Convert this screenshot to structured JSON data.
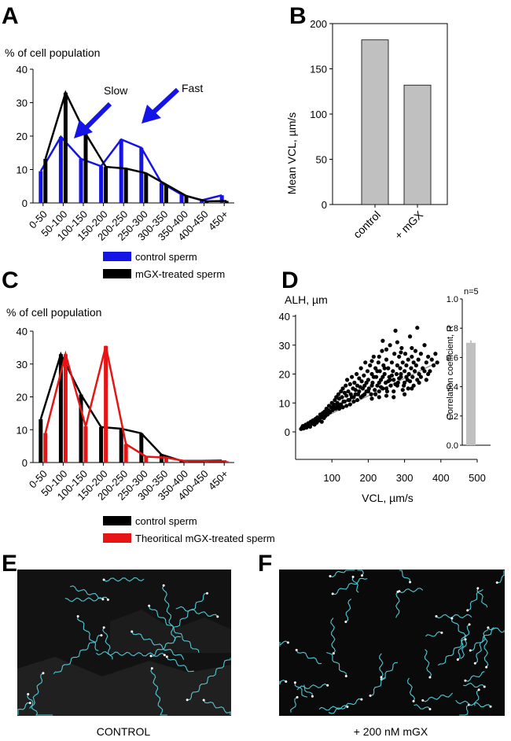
{
  "colors": {
    "control_blue": "#1414e6",
    "black": "#000000",
    "red": "#e61414",
    "gray_bar": "#c0c0c0"
  },
  "panels": {
    "A": {
      "letter": "A",
      "ylabel": "% of cell population",
      "legend": [
        {
          "label": "control sperm",
          "color": "#1414e6"
        },
        {
          "label": "mGX-treated sperm",
          "color": "#000000"
        }
      ],
      "annotations": {
        "slow": "Slow",
        "fast": "Fast"
      }
    },
    "B": {
      "letter": "B",
      "ylabel": "Mean VCL, µm/s"
    },
    "C": {
      "letter": "C",
      "ylabel": "% of cell population",
      "legend": [
        {
          "label": "control sperm",
          "color": "#000000"
        },
        {
          "label": "Theoritical mGX-treated sperm",
          "color": "#e61414"
        }
      ]
    },
    "D": {
      "letter": "D",
      "ylabel": "ALH, µm",
      "xlabel": "VCL, µm/s",
      "inset_ylabel": "Correlation coefficient, R",
      "inset_note": "n=5"
    },
    "E": {
      "letter": "E",
      "caption": "CONTROL"
    },
    "F": {
      "letter": "F",
      "caption": "+ 200 nM mGX"
    }
  },
  "chart_data": [
    {
      "panel": "A",
      "type": "bar",
      "categories": [
        "0-50",
        "50-100",
        "100-150",
        "150-200",
        "200-250",
        "250-300",
        "300-350",
        "350-400",
        "400-450",
        "450+"
      ],
      "series": [
        {
          "name": "control sperm",
          "values": [
            9.5,
            19.8,
            13.2,
            11.0,
            19.0,
            16.5,
            6.0,
            2.5,
            0.8,
            2.3
          ]
        },
        {
          "name": "mGX-treated sperm",
          "values": [
            13.2,
            33.0,
            20.7,
            10.8,
            10.3,
            8.9,
            5.5,
            2.1,
            0.5,
            0.6
          ]
        }
      ],
      "ylabel": "% of cell population",
      "ylim": [
        0,
        40
      ],
      "yticks": [
        0,
        10,
        20,
        30,
        40
      ]
    },
    {
      "panel": "B",
      "type": "bar",
      "categories": [
        "control",
        "+ mGX"
      ],
      "values": [
        182,
        132
      ],
      "ylabel": "Mean VCL, µm/s",
      "ylim": [
        0,
        200
      ],
      "yticks": [
        0,
        50,
        100,
        150,
        200
      ]
    },
    {
      "panel": "C",
      "type": "bar",
      "categories": [
        "0-50",
        "50-100",
        "100-150",
        "150-200",
        "200-250",
        "250-300",
        "300-350",
        "350-400",
        "400-450",
        "450+"
      ],
      "series": [
        {
          "name": "control sperm",
          "values": [
            13.2,
            33.0,
            20.7,
            10.8,
            10.3,
            8.9,
            2.4,
            0.5,
            0.5,
            0.6
          ]
        },
        {
          "name": "Theoritical mGX-treated sperm",
          "values": [
            9.0,
            33.0,
            11.0,
            35.5,
            5.6,
            1.8,
            1.5,
            0.4,
            0.4,
            0.4
          ]
        }
      ],
      "ylabel": "% of cell population",
      "ylim": [
        0,
        40
      ],
      "yticks": [
        0,
        10,
        20,
        30,
        40
      ]
    },
    {
      "panel": "D",
      "type": "scatter",
      "xlabel": "VCL, µm/s",
      "ylabel": "ALH, µm",
      "xlim": [
        0,
        500
      ],
      "ylim": [
        0,
        40
      ],
      "xticks": [
        100,
        200,
        300,
        400,
        500
      ],
      "yticks": [
        0,
        10,
        20,
        30,
        40
      ],
      "fit_line": [
        [
          20,
          1.5
        ],
        [
          390,
          24
        ]
      ],
      "points": [
        [
          15,
          1
        ],
        [
          18,
          1.5
        ],
        [
          20,
          2
        ],
        [
          22,
          1.2
        ],
        [
          25,
          1.8
        ],
        [
          28,
          2.5
        ],
        [
          30,
          1.5
        ],
        [
          32,
          2
        ],
        [
          35,
          3
        ],
        [
          38,
          2.2
        ],
        [
          40,
          1.8
        ],
        [
          42,
          3.5
        ],
        [
          45,
          2.8
        ],
        [
          48,
          4
        ],
        [
          50,
          3
        ],
        [
          52,
          2.5
        ],
        [
          55,
          4.5
        ],
        [
          58,
          3.2
        ],
        [
          60,
          5
        ],
        [
          62,
          3.8
        ],
        [
          65,
          4.2
        ],
        [
          68,
          6
        ],
        [
          70,
          5
        ],
        [
          72,
          3.5
        ],
        [
          75,
          6.5
        ],
        [
          78,
          4.8
        ],
        [
          80,
          7
        ],
        [
          82,
          5.5
        ],
        [
          85,
          8
        ],
        [
          88,
          6
        ],
        [
          90,
          7.5
        ],
        [
          92,
          9
        ],
        [
          95,
          6.8
        ],
        [
          98,
          8.5
        ],
        [
          100,
          10
        ],
        [
          102,
          7.5
        ],
        [
          105,
          9.5
        ],
        [
          108,
          11
        ],
        [
          110,
          8
        ],
        [
          112,
          12
        ],
        [
          115,
          10
        ],
        [
          118,
          13
        ],
        [
          120,
          11.5
        ],
        [
          122,
          9
        ],
        [
          125,
          14
        ],
        [
          128,
          12
        ],
        [
          130,
          15
        ],
        [
          132,
          10.5
        ],
        [
          135,
          13.5
        ],
        [
          138,
          16
        ],
        [
          140,
          12.5
        ],
        [
          142,
          18
        ],
        [
          145,
          14
        ],
        [
          148,
          11
        ],
        [
          150,
          16.5
        ],
        [
          152,
          13
        ],
        [
          155,
          19
        ],
        [
          158,
          15
        ],
        [
          160,
          12
        ],
        [
          162,
          17
        ],
        [
          165,
          14.5
        ],
        [
          168,
          20
        ],
        [
          170,
          16
        ],
        [
          172,
          13
        ],
        [
          175,
          18.5
        ],
        [
          178,
          15.5
        ],
        [
          180,
          22
        ],
        [
          182,
          17.5
        ],
        [
          185,
          12.5
        ],
        [
          188,
          19.5
        ],
        [
          190,
          16
        ],
        [
          192,
          24
        ],
        [
          195,
          14
        ],
        [
          198,
          21
        ],
        [
          200,
          18
        ],
        [
          202,
          15
        ],
        [
          205,
          23
        ],
        [
          208,
          13
        ],
        [
          210,
          20
        ],
        [
          212,
          17
        ],
        [
          215,
          26
        ],
        [
          218,
          14.5
        ],
        [
          220,
          22
        ],
        [
          222,
          19
        ],
        [
          225,
          16
        ],
        [
          228,
          24
        ],
        [
          230,
          12
        ],
        [
          232,
          21
        ],
        [
          235,
          18
        ],
        [
          238,
          28
        ],
        [
          240,
          15
        ],
        [
          242,
          23
        ],
        [
          245,
          20
        ],
        [
          248,
          17
        ],
        [
          250,
          25
        ],
        [
          252,
          14
        ],
        [
          255,
          22
        ],
        [
          258,
          19
        ],
        [
          260,
          30
        ],
        [
          262,
          16
        ],
        [
          265,
          24
        ],
        [
          268,
          21
        ],
        [
          270,
          18
        ],
        [
          272,
          27
        ],
        [
          275,
          35
        ],
        [
          278,
          20
        ],
        [
          280,
          23
        ],
        [
          282,
          17
        ],
        [
          285,
          26
        ],
        [
          288,
          22
        ],
        [
          290,
          19
        ],
        [
          292,
          29
        ],
        [
          295,
          24
        ],
        [
          298,
          16
        ],
        [
          300,
          21
        ],
        [
          302,
          27
        ],
        [
          305,
          23
        ],
        [
          308,
          18
        ],
        [
          310,
          25
        ],
        [
          312,
          20
        ],
        [
          315,
          33
        ],
        [
          318,
          22
        ],
        [
          320,
          26
        ],
        [
          322,
          19
        ],
        [
          325,
          24
        ],
        [
          328,
          21
        ],
        [
          330,
          28
        ],
        [
          332,
          23
        ],
        [
          335,
          36
        ],
        [
          338,
          25
        ],
        [
          340,
          20
        ],
        [
          345,
          27
        ],
        [
          350,
          22
        ],
        [
          355,
          30
        ],
        [
          360,
          24
        ],
        [
          365,
          26
        ],
        [
          370,
          21
        ],
        [
          375,
          25
        ],
        [
          380,
          23
        ],
        [
          385,
          27
        ],
        [
          390,
          24
        ],
        [
          200,
          14
        ],
        [
          210,
          16
        ],
        [
          220,
          13
        ],
        [
          230,
          17
        ],
        [
          240,
          19
        ],
        [
          250,
          15
        ],
        [
          260,
          18
        ],
        [
          270,
          14
        ],
        [
          280,
          16
        ],
        [
          290,
          20
        ],
        [
          300,
          17
        ],
        [
          310,
          15
        ],
        [
          190,
          13
        ],
        [
          180,
          12
        ],
        [
          170,
          11
        ],
        [
          160,
          10.5
        ],
        [
          150,
          9.5
        ],
        [
          140,
          9
        ],
        [
          130,
          8.5
        ],
        [
          120,
          8
        ],
        [
          250,
          12.5
        ],
        [
          270,
          12
        ],
        [
          230,
          14
        ],
        [
          210,
          11.5
        ],
        [
          300,
          13
        ],
        [
          320,
          15
        ],
        [
          340,
          17
        ],
        [
          360,
          18
        ],
        [
          215,
          19
        ],
        [
          225,
          21
        ],
        [
          235,
          15.5
        ],
        [
          245,
          22
        ],
        [
          255,
          17.5
        ],
        [
          265,
          19.5
        ],
        [
          275,
          16.5
        ],
        [
          285,
          18.5
        ],
        [
          295,
          14.5
        ],
        [
          305,
          19
        ],
        [
          315,
          17.5
        ],
        [
          325,
          16
        ],
        [
          335,
          18
        ],
        [
          345,
          19
        ],
        [
          355,
          21
        ],
        [
          365,
          20
        ],
        [
          195,
          17
        ],
        [
          185,
          15
        ],
        [
          175,
          14
        ],
        [
          165,
          13
        ],
        [
          155,
          12
        ],
        [
          145,
          11
        ],
        [
          135,
          10.5
        ],
        [
          125,
          9.5
        ],
        [
          115,
          9
        ],
        [
          105,
          8.5
        ],
        [
          95,
          7
        ],
        [
          85,
          6.5
        ],
        [
          75,
          5.5
        ],
        [
          65,
          4.5
        ],
        [
          55,
          3.5
        ],
        [
          45,
          3
        ],
        [
          35,
          2.5
        ],
        [
          25,
          1.5
        ],
        [
          280,
          31
        ],
        [
          290,
          27.5
        ],
        [
          230,
          26
        ],
        [
          250,
          28.5
        ],
        [
          210,
          24.5
        ],
        [
          320,
          29
        ],
        [
          240,
          31.5
        ]
      ]
    },
    {
      "panel": "D-inset",
      "type": "bar",
      "categories": [
        ""
      ],
      "values": [
        0.7
      ],
      "ylabel": "Correlation coefficient, R",
      "ylim": [
        0,
        1.0
      ],
      "yticks": [
        0,
        0.2,
        0.4,
        0.6,
        0.8,
        1.0
      ],
      "annotation": "n=5"
    }
  ]
}
